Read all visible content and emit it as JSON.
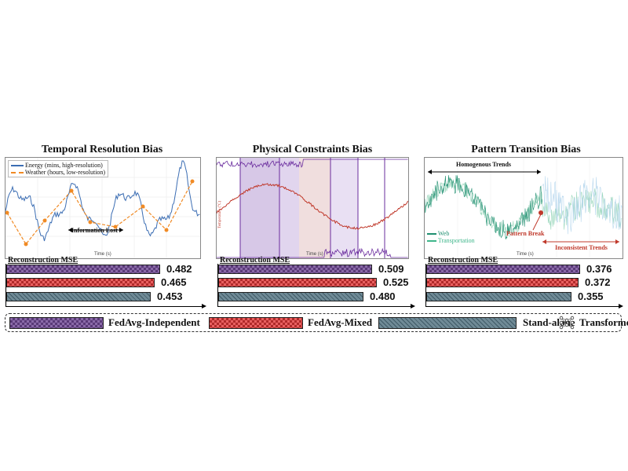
{
  "chart_data": [
    {
      "type": "line",
      "title": "Temporal Resolution Bias",
      "xlabel": "Time (s)",
      "series": [
        {
          "name": "Energy (mins, high-resolution)",
          "color": "#3b6db3"
        },
        {
          "name": "Weather (hours, low-resolution)",
          "color": "#f08a24"
        }
      ],
      "annotations": [
        "Information Lost"
      ],
      "mse_label": "Reconstruction MSE",
      "mse": [
        {
          "method": "FedAvg-Independent",
          "value": 0.482
        },
        {
          "method": "FedAvg-Mixed",
          "value": 0.465
        },
        {
          "method": "Stand-alone",
          "value": 0.453
        }
      ]
    },
    {
      "type": "line",
      "title": "Physical Constraints Bias",
      "xlabel": "Time (s)",
      "ylabel": "Temperature (°C)",
      "series": [
        {
          "color": "#c0392b"
        },
        {
          "color": "#6a2c9e"
        }
      ],
      "mse_label": "Reconstruction MSE",
      "mse": [
        {
          "method": "FedAvg-Independent",
          "value": 0.509
        },
        {
          "method": "FedAvg-Mixed",
          "value": 0.525
        },
        {
          "method": "Stand-alone",
          "value": 0.48
        }
      ]
    },
    {
      "type": "line",
      "title": "Pattern Transition Bias",
      "xlabel": "Time (s)",
      "series": [
        {
          "name": "Web",
          "color": "#1f8f70"
        },
        {
          "name": "Transportation",
          "color": "#3fb68b"
        }
      ],
      "annotations": [
        "Homogenous Trends",
        "Pattern Break",
        "Inconsistent Trends"
      ],
      "mse_label": "Reconstruction MSE",
      "mse": [
        {
          "method": "FedAvg-Independent",
          "value": 0.376
        },
        {
          "method": "FedAvg-Mixed",
          "value": 0.372
        },
        {
          "method": "Stand-alone",
          "value": 0.355
        }
      ]
    }
  ],
  "legend": {
    "items": [
      "FedAvg-Independent",
      "FedAvg-Mixed",
      "Stand-alone",
      "Transformer"
    ],
    "icon": "neural-network-icon"
  },
  "colors": {
    "independent": "#8a6aa8",
    "mixed": "#e86060",
    "standalone": "#6f8a96"
  }
}
